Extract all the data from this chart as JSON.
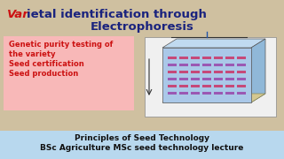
{
  "bg_color": "#cfc0a0",
  "title_line1_var": "Var",
  "title_line1_rest": "ietal identification through",
  "title_line2": "Electrophoresis",
  "title_color_main": "#1a237e",
  "title_color_var": "#cc1111",
  "title_fontsize": 9.5,
  "bullet_box_color": "#f8b8b8",
  "bullet_items": [
    "Genetic purity testing of",
    "the variety",
    "Seed certification",
    "Seed production"
  ],
  "bullet_color": "#cc1111",
  "bullet_fontsize": 6.0,
  "footer_bg": "#b8d8ee",
  "footer_line1": "Principles of Seed Technology",
  "footer_line2": "BSc Agriculture MSc seed technology lecture",
  "footer_fontsize": 6.5,
  "footer_color": "#111111",
  "diagram_bg": "#ffffff",
  "gel_color": "#aac8e8",
  "band_colors_row": [
    "#cc3366",
    "#9944aa",
    "#cc3366",
    "#9944aa",
    "#cc3366",
    "#9944aa"
  ],
  "tray_color": "#d4c890"
}
